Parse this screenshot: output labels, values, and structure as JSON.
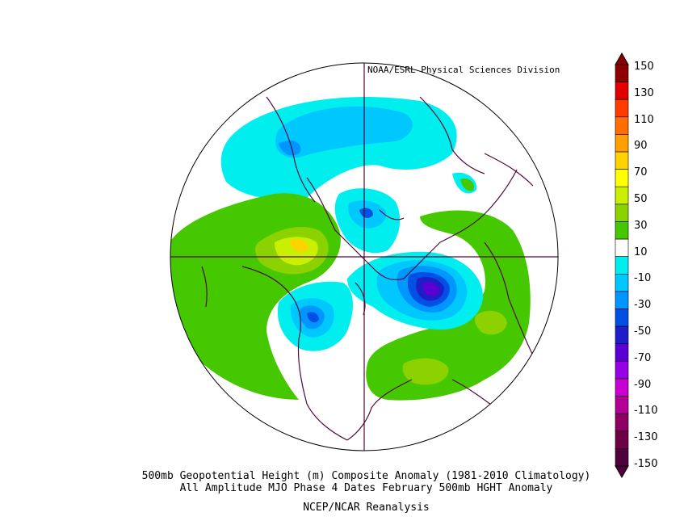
{
  "credit": "NOAA/ESRL Physical Sciences Division",
  "caption": {
    "line1": "500mb Geopotential Height (m) Composite Anomaly (1981-2010 Climatology)",
    "line2": "All Amplitude MJO Phase 4 Dates February 500mb HGHT Anomaly",
    "line3": "NCEP/NCAR Reanalysis"
  },
  "colorbar": {
    "labels": [
      "150",
      "130",
      "110",
      "90",
      "70",
      "50",
      "30",
      "10",
      "-10",
      "-30",
      "-50",
      "-70",
      "-90",
      "-110",
      "-130",
      "-150"
    ],
    "colors": [
      "#8c0000",
      "#e10000",
      "#ff3c00",
      "#ff6e00",
      "#ffa000",
      "#ffd200",
      "#ffff00",
      "#c8f000",
      "#8cd200",
      "#46c800",
      "#ffffff",
      "#00eeee",
      "#00c8ff",
      "#0096ff",
      "#0050e6",
      "#1e1ec8",
      "#5a00d2",
      "#9600e6",
      "#c800d2",
      "#b40096",
      "#8c0064",
      "#6e0046",
      "#50003c"
    ],
    "units": "m"
  },
  "map_data": {
    "projection": "north-polar-stereographic",
    "variable": "500mb geopotential height anomaly",
    "features": [
      {
        "name": "deep-negative-anomaly-over-north-atlantic-canada",
        "value": -90
      },
      {
        "name": "negative-anomaly-over-north-pacific",
        "value": -50
      },
      {
        "name": "positive-anomaly-over-eastern-siberia-bering",
        "value": 70
      },
      {
        "name": "positive-anomaly-over-europe-africa",
        "value": 40
      },
      {
        "name": "negative-anomaly-over-arctic-russia",
        "value": -30
      }
    ]
  }
}
